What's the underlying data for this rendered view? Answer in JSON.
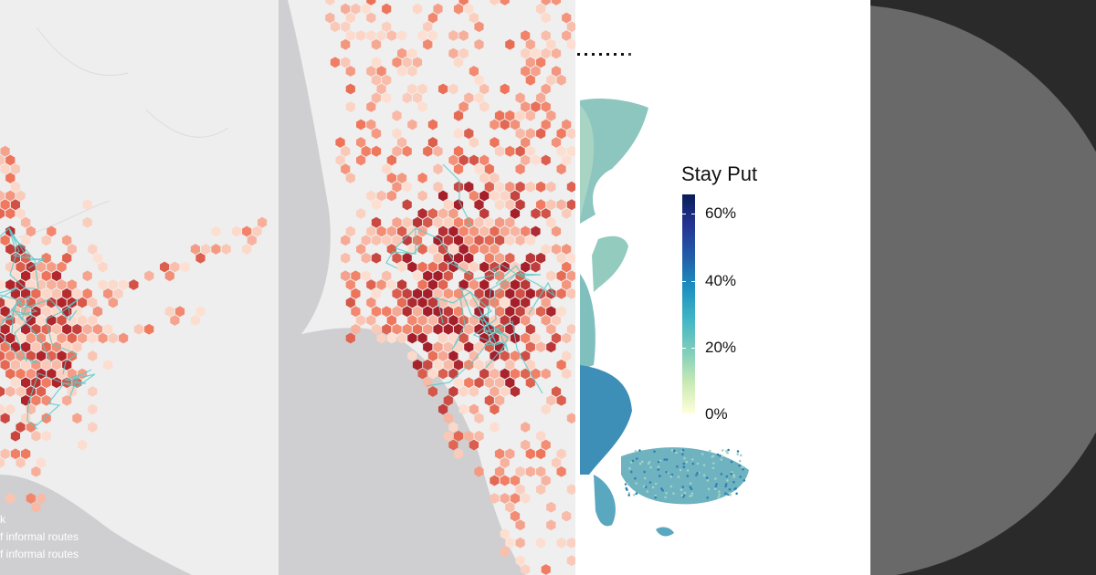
{
  "panels": {
    "left_map": {
      "legend_lines": [
        "k",
        "f informal routes",
        "f informal routes"
      ],
      "colors": {
        "land": "#eeeeee",
        "sea": "#cfcfd1",
        "hex_low": "#fde0d2",
        "hex_mid": "#f0775c",
        "hex_high": "#b0242a",
        "route": "#58c9c9"
      }
    },
    "center_map": {
      "colors": {
        "land": "#efefef",
        "sea": "#cfcfd1",
        "hex_low": "#fde0d2",
        "hex_mid": "#f0775c",
        "hex_high": "#a51f2a",
        "route": "#58c9c9"
      }
    },
    "right_map": {
      "legend_title": "Stay Put",
      "legend_ticks": [
        "60%",
        "40%",
        "20%",
        "0%"
      ],
      "scale_range_percent": [
        0,
        65
      ],
      "colors": {
        "scale_low": "#ffffd9",
        "scale_high": "#081d58",
        "region": "#7fbfbd"
      }
    },
    "dark_panel": {
      "colors": {
        "background": "#2a2a2a",
        "disc": "#696969"
      }
    }
  }
}
